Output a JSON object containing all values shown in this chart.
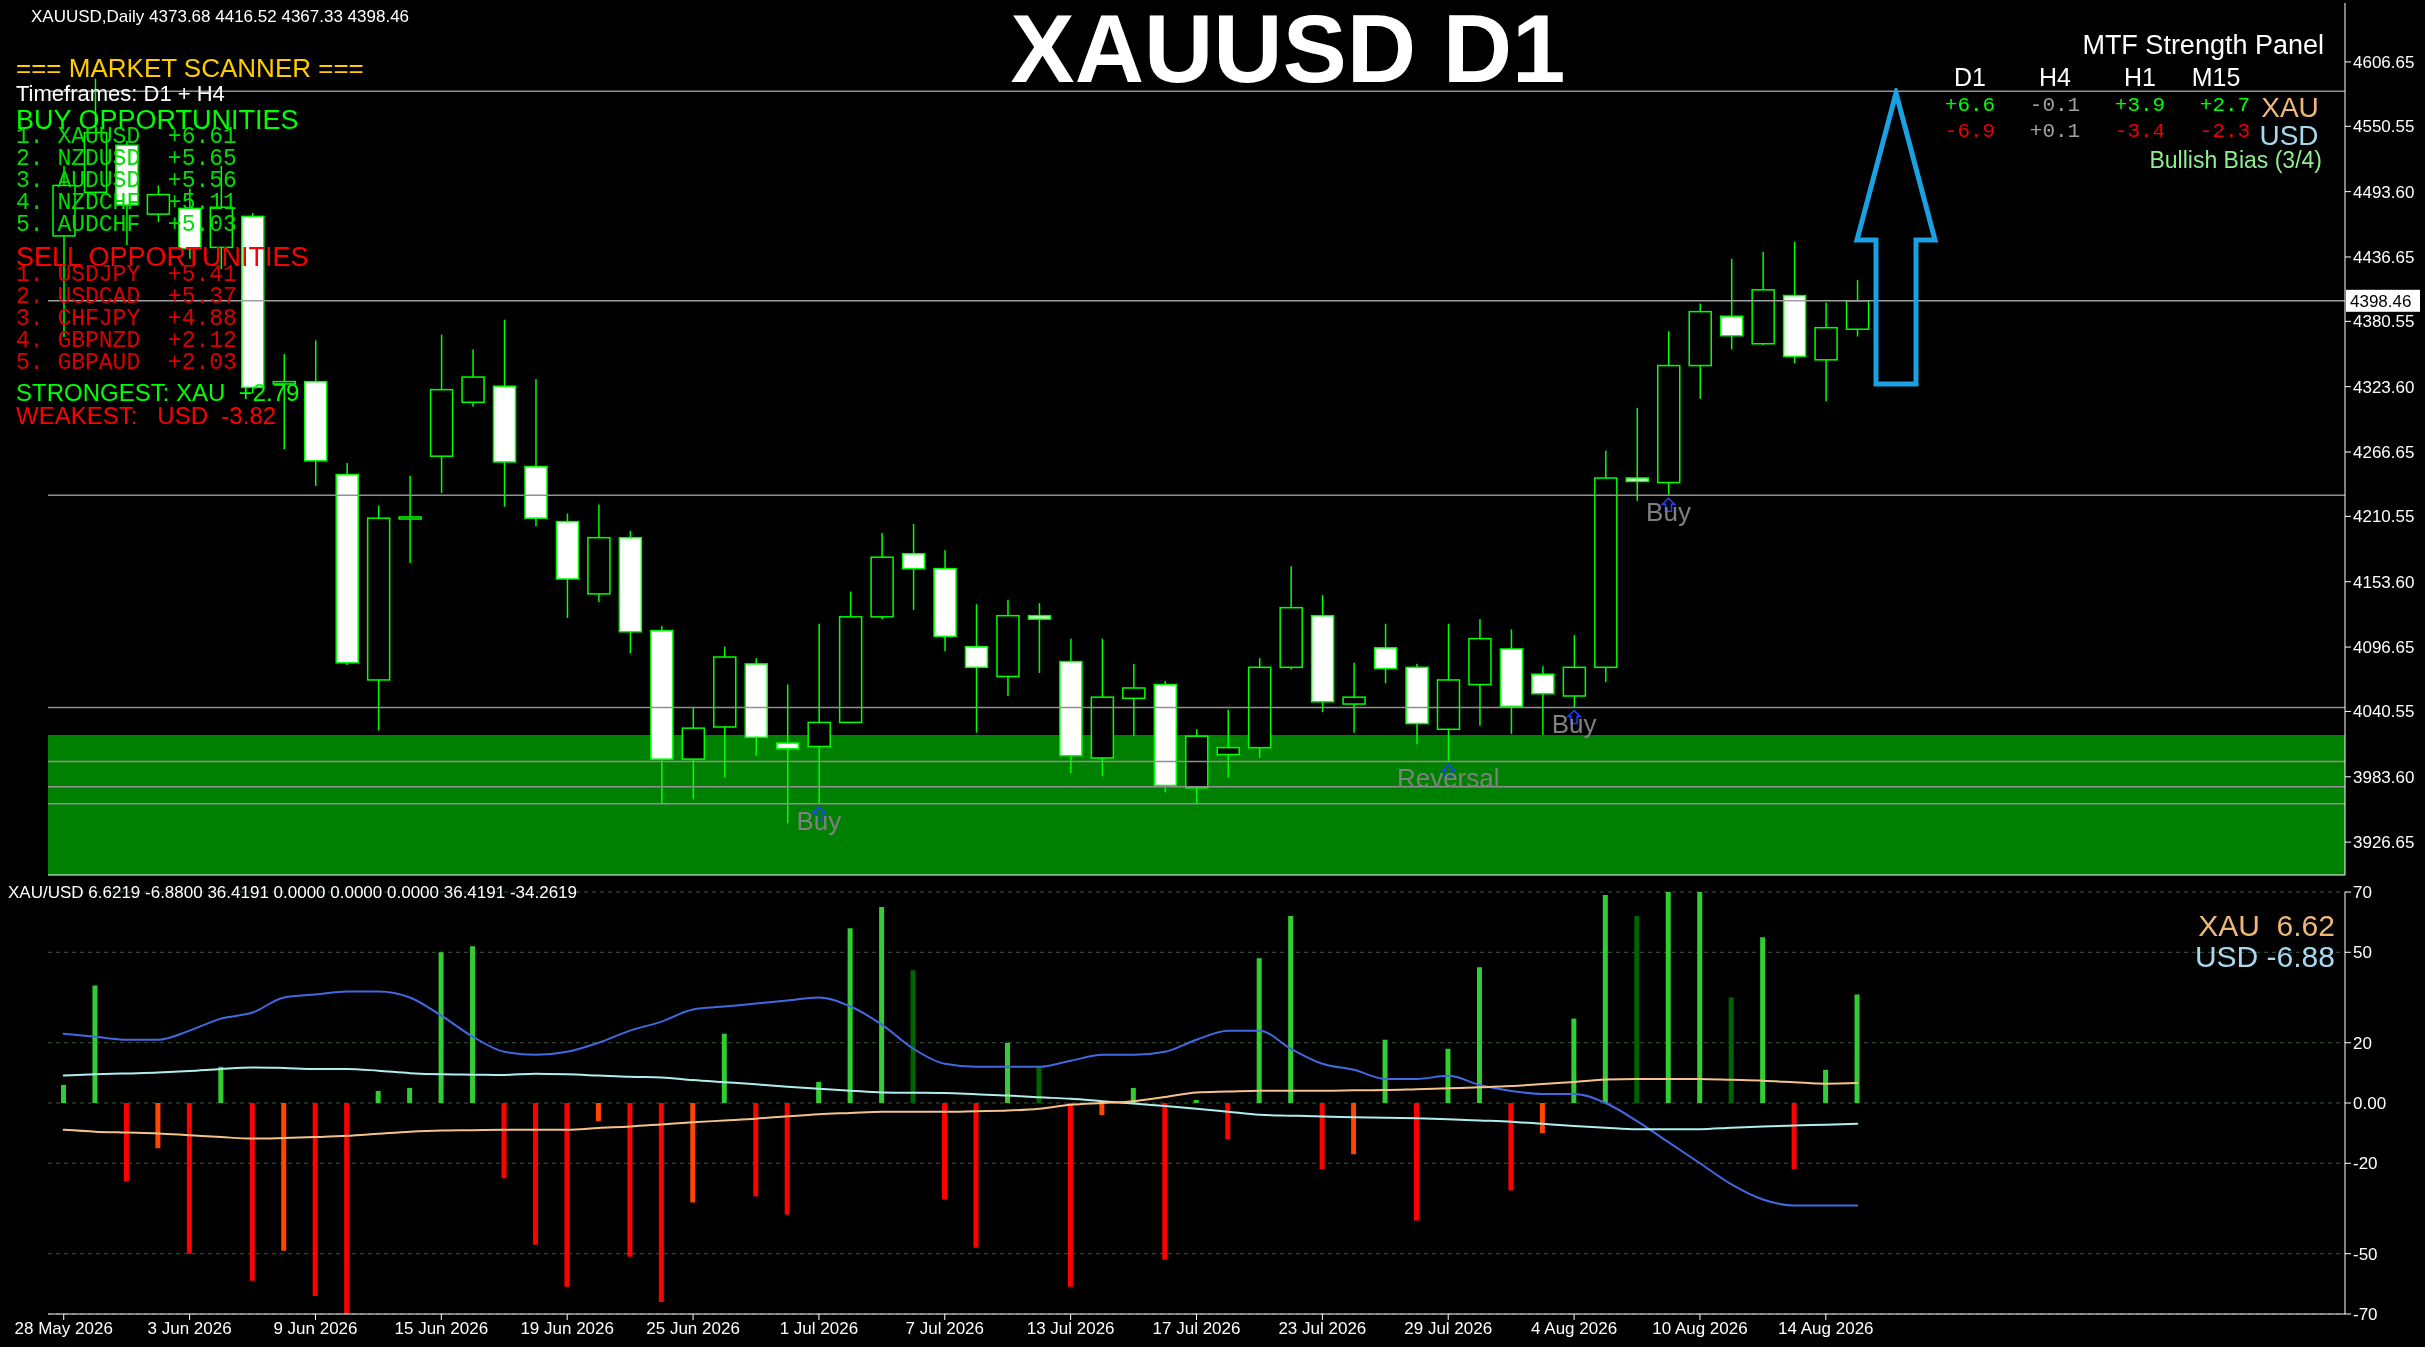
{
  "chart_data": [
    {
      "type": "candlestick",
      "title": "XAUUSD D1",
      "color": "#00ff00",
      "tick_labels": "y",
      "categories": [
        "28 May 2026",
        null,
        null,
        null,
        "3 Jun 2026",
        null,
        null,
        null,
        "9 Jun 2026",
        null,
        null,
        null,
        "15 Jun 2026",
        null,
        null,
        null,
        "19 Jun 2026",
        null,
        null,
        null,
        "25 Jun 2026",
        null,
        null,
        null,
        "1 Jul 2026",
        null,
        null,
        null,
        "7 Jul 2026",
        null,
        null,
        null,
        "13 Jul 2026",
        null,
        null,
        null,
        "17 Jul 2026",
        null,
        null,
        null,
        "23 Jul 2026",
        null,
        null,
        null,
        "29 Jul 2026",
        null,
        null,
        null,
        "4 Aug 2026",
        null,
        null,
        null,
        "10 Aug 2026",
        null,
        null,
        null,
        "14 Aug 2026",
        null,
        null,
        null,
        null,
        null,
        null,
        null,
        null,
        null,
        null,
        null,
        null,
        null,
        null,
        null,
        null
      ],
      "ohlc": [
        [
          4455,
          4516,
          4367,
          4499
        ],
        [
          4493,
          4592,
          4489,
          4545
        ],
        [
          4534,
          4538,
          4447,
          4482
        ],
        [
          4474,
          4499,
          4467,
          4491
        ],
        [
          4479,
          4496,
          4435,
          4444
        ],
        [
          4445,
          4516,
          4426,
          4480
        ],
        [
          4472,
          4475,
          4318,
          4323
        ],
        [
          4326,
          4352,
          4269,
          4328
        ],
        [
          4328,
          4364,
          4237,
          4259
        ],
        [
          4247,
          4257,
          4081,
          4083
        ],
        [
          4068,
          4220,
          4024,
          4209
        ],
        [
          4209,
          4246,
          4170,
          4210
        ],
        [
          4263,
          4369,
          4231,
          4321
        ],
        [
          4310,
          4356,
          4306,
          4332
        ],
        [
          4324,
          4382,
          4219,
          4258
        ],
        [
          4254,
          4330,
          4202,
          4209
        ],
        [
          4206,
          4213,
          4122,
          4156
        ],
        [
          4143,
          4221,
          4136,
          4192
        ],
        [
          4192,
          4198,
          4091,
          4110
        ],
        [
          4111,
          4115,
          3960,
          3999
        ],
        [
          3999,
          4044,
          3964,
          4026
        ],
        [
          4027,
          4097,
          3983,
          4088
        ],
        [
          4082,
          4087,
          4002,
          4018
        ],
        [
          4013,
          4064,
          3943,
          4008
        ],
        [
          4010,
          4117,
          3960,
          4031
        ],
        [
          4031,
          4145,
          4031,
          4123
        ],
        [
          4123,
          4196,
          4121,
          4175
        ],
        [
          4178,
          4204,
          4129,
          4165
        ],
        [
          4165,
          4181,
          4093,
          4106
        ],
        [
          4097,
          4134,
          4022,
          4079
        ],
        [
          4071,
          4138,
          4054,
          4124
        ],
        [
          4124,
          4135,
          4074,
          4121
        ],
        [
          4084,
          4104,
          3987,
          4002
        ],
        [
          4000,
          4104,
          3984,
          4053
        ],
        [
          4052,
          4082,
          4019,
          4061
        ],
        [
          4064,
          4067,
          3970,
          3976
        ],
        [
          3974,
          4025,
          3960,
          4019
        ],
        [
          4003,
          4042,
          3983,
          4009
        ],
        [
          4009,
          4087,
          4000,
          4079
        ],
        [
          4079,
          4167,
          4077,
          4131
        ],
        [
          4124,
          4142,
          4040,
          4049
        ],
        [
          4047,
          4083,
          4022,
          4053
        ],
        [
          4096,
          4117,
          4065,
          4078
        ],
        [
          4079,
          4082,
          4012,
          4030
        ],
        [
          4025,
          4117,
          3997,
          4068
        ],
        [
          4064,
          4121,
          4028,
          4104
        ],
        [
          4095,
          4112,
          4021,
          4045
        ],
        [
          4073,
          4080,
          4020,
          4056
        ],
        [
          4054,
          4107,
          4044,
          4079
        ],
        [
          4079,
          4268,
          4066,
          4244
        ],
        [
          4244,
          4305,
          4224,
          4241
        ],
        [
          4240,
          4372,
          4229,
          4342
        ],
        [
          4342,
          4396,
          4313,
          4389
        ],
        [
          4385,
          4435,
          4356,
          4368
        ],
        [
          4361,
          4441,
          4360,
          4408
        ],
        [
          4403,
          4450,
          4344,
          4350
        ],
        [
          4347,
          4397,
          4311,
          4375
        ],
        [
          4373.68,
          4416.52,
          4367.33,
          4398.46
        ],
        null,
        null,
        null,
        null,
        null,
        null,
        null,
        null,
        null,
        null,
        null,
        null,
        null,
        null,
        null
      ],
      "ylim": [
        3898,
        4658
      ],
      "yticks": [
        {
          "value": 4606.65,
          "label": "4606.65"
        },
        {
          "value": 4550.55,
          "label": "4550.55"
        },
        {
          "value": 4493.6,
          "label": "4493.60"
        },
        {
          "value": 4436.65,
          "label": "4436.65"
        },
        {
          "value": 4380.55,
          "label": "4380.55"
        },
        {
          "value": 4323.6,
          "label": "4323.60"
        },
        {
          "value": 4266.65,
          "label": "4266.65"
        },
        {
          "value": 4210.55,
          "label": "4210.55"
        },
        {
          "value": 4153.6,
          "label": "4153.60"
        },
        {
          "value": 4096.65,
          "label": "4096.65"
        },
        {
          "value": 4040.55,
          "label": "4040.55"
        },
        {
          "value": 3983.6,
          "label": "3983.60"
        },
        {
          "value": 3926.65,
          "label": "3926.65"
        }
      ],
      "bands": [
        {
          "axis": "y",
          "from": 3898,
          "to": 4020,
          "color": "#008000"
        }
      ],
      "ref_lines": [
        {
          "axis": "y",
          "value": 4398.46,
          "label": "4398.46",
          "color": "#a0a0a0"
        },
        {
          "axis": "y",
          "value": 4581,
          "color": "#909090"
        },
        {
          "axis": "y",
          "value": 4229,
          "color": "#909090"
        },
        {
          "axis": "y",
          "value": 4044,
          "color": "#909090"
        },
        {
          "axis": "y",
          "value": 3997,
          "color": "#909090"
        },
        {
          "axis": "y",
          "value": 3975,
          "color": "#909090"
        },
        {
          "axis": "y",
          "value": 3960,
          "color": "#909090"
        }
      ],
      "annotations": [
        "XAUUSD,Daily 4373.68 4416.52 4367.33 4398.46",
        "=== MARKET SCANNER ===",
        "Timeframes: D1 + H4",
        "BUY OPPORTUNITIES",
        "1. XAUUSD  +6.61",
        "2. NZDUSD  +5.65",
        "3. AUDUSD  +5.56",
        "4. NZDCHF  +5.11",
        "5. AUDCHF  +5.03",
        "SELL OPPORTUNITIES",
        "1. USDJPY  +5.41",
        "2. USDCAD  +5.37",
        "3. CHFJPY  +4.88",
        "4. GBPNZD  +2.12",
        "5. GBPAUD  +2.03",
        "STRONGEST: XAU  +2.79",
        "WEAKEST:   USD  -3.82",
        "MTF Strength Panel",
        "D1",
        "H4",
        "H1",
        "M15",
        "+6.6",
        "-0.1",
        "+3.9",
        "+2.7",
        "XAU",
        "-6.9",
        "+0.1",
        "-3.4",
        "-2.3",
        "USD",
        "Bullish Bias (3/4)",
        {
          "text": "Buy",
          "x": "1 Jul 2026",
          "y": 3960
        },
        {
          "text": "Reversal",
          "x": "29 Jul 2026",
          "y": 3997
        },
        {
          "text": "Buy",
          "x": "4 Aug 2026",
          "y": 4044
        },
        {
          "text": "Buy",
          "y": 4229
        }
      ]
    },
    {
      "type": "bar",
      "grid": "y",
      "categories": [
        "28 May 2026",
        null,
        null,
        null,
        "3 Jun 2026",
        null,
        null,
        null,
        "9 Jun 2026",
        null,
        null,
        null,
        "15 Jun 2026",
        null,
        null,
        null,
        "19 Jun 2026",
        null,
        null,
        null,
        "25 Jun 2026",
        null,
        null,
        null,
        "1 Jul 2026",
        null,
        null,
        null,
        "7 Jul 2026",
        null,
        null,
        null,
        "13 Jul 2026",
        null,
        null,
        null,
        "17 Jul 2026",
        null,
        null,
        null,
        "23 Jul 2026",
        null,
        null,
        null,
        "29 Jul 2026",
        null,
        null,
        null,
        "4 Aug 2026",
        null,
        null,
        null,
        "10 Aug 2026",
        null,
        null,
        null,
        "14 Aug 2026",
        null,
        null,
        null,
        null,
        null,
        null,
        null,
        null,
        null,
        null,
        null,
        null,
        null,
        null,
        null,
        null
      ],
      "ylim": [
        -70,
        70
      ],
      "yticks": [
        70,
        50,
        20,
        {
          "value": 0,
          "label": "0.00"
        },
        -20,
        -50,
        -70
      ],
      "series": [
        {
          "type": "bar",
          "values": [
            6,
            39,
            -26,
            -15,
            -50,
            12,
            -59,
            -49,
            -64,
            -70,
            4,
            5,
            50,
            52,
            -25,
            -47,
            -61,
            -6,
            -51,
            -66,
            -33,
            23,
            -31,
            -37,
            7,
            58,
            65,
            44,
            -32,
            -48,
            20,
            12,
            -61,
            -4,
            5,
            -52,
            1,
            -12,
            48,
            62,
            -22,
            -17,
            21,
            -39,
            18,
            45,
            -29,
            -10,
            28,
            69,
            62,
            70,
            70,
            35,
            55,
            -22,
            11,
            36,
            null,
            null,
            null,
            null,
            null,
            null,
            null,
            null,
            null,
            null,
            null,
            null,
            null,
            null,
            null
          ],
          "colors": [
            "#32cd32",
            "#32cd32",
            "#ff0000",
            "#ff4500",
            "#ff0000",
            "#32cd32",
            "#ff0000",
            "#ff4500",
            "#ff0000",
            "#ff0000",
            "#32cd32",
            "#32cd32",
            "#32cd32",
            "#32cd32",
            "#ff0000",
            "#ff0000",
            "#ff0000",
            "#ff4500",
            "#ff0000",
            "#ff0000",
            "#ff4500",
            "#32cd32",
            "#ff0000",
            "#ff0000",
            "#32cd32",
            "#32cd32",
            "#32cd32",
            "#006400",
            "#ff0000",
            "#ff0000",
            "#32cd32",
            "#006400",
            "#ff0000",
            "#ff4500",
            "#32cd32",
            "#ff0000",
            "#32cd32",
            "#ff0000",
            "#32cd32",
            "#32cd32",
            "#ff0000",
            "#ff4500",
            "#32cd32",
            "#ff0000",
            "#32cd32",
            "#32cd32",
            "#ff0000",
            "#ff4500",
            "#32cd32",
            "#32cd32",
            "#006400",
            "#32cd32",
            "#32cd32",
            "#006400",
            "#32cd32",
            "#ff0000",
            "#32cd32",
            "#32cd32",
            null,
            null,
            null,
            null,
            null,
            null,
            null,
            null,
            null,
            null,
            null,
            null,
            null,
            null,
            null
          ]
        },
        {
          "type": "line",
          "color": "#4169e1",
          "values": [
            23,
            22,
            21,
            21,
            24,
            28,
            30,
            35,
            36,
            37,
            37,
            35,
            29,
            22,
            17,
            16,
            17,
            20,
            24,
            27,
            31,
            32,
            33,
            34,
            35,
            32,
            26,
            18,
            13,
            12,
            12,
            12,
            14,
            16,
            16,
            17,
            21,
            24,
            24,
            18,
            13,
            11,
            8,
            8,
            9,
            6,
            4,
            3,
            3,
            0,
            -6,
            -13,
            -20,
            -27,
            -32,
            -34,
            -34,
            -34,
            null,
            null,
            null,
            null,
            null,
            null,
            null,
            null,
            null,
            null,
            null,
            null,
            null,
            null,
            null
          ]
        },
        {
          "type": "line",
          "color": "#afeeee",
          "values": [
            9.1,
            9.5,
            9.8,
            10.1,
            10.6,
            11.3,
            11.8,
            11.6,
            11.3,
            11.3,
            10.7,
            9.9,
            9.5,
            9.4,
            9.3,
            9.7,
            9.5,
            9.1,
            8.7,
            8.5,
            7.6,
            6.9,
            6.2,
            5.4,
            4.7,
            4.1,
            3.5,
            3.4,
            3.3,
            2.9,
            2.5,
            1.9,
            1.4,
            0.6,
            -0.2,
            -1,
            -1.9,
            -2.9,
            -3.9,
            -4.2,
            -4.5,
            -4.7,
            -4.9,
            -5.1,
            -5.4,
            -5.8,
            -6.2,
            -6.9,
            -7.6,
            -8.2,
            -8.7,
            -8.7,
            -8.7,
            -8.2,
            -7.8,
            -7.5,
            -7.2,
            -6.9,
            null,
            null,
            null,
            null,
            null,
            null,
            null,
            null,
            null,
            null,
            null,
            null,
            null,
            null,
            null
          ]
        },
        {
          "type": "line",
          "color": "#f4c28a",
          "values": [
            -8.9,
            -9.5,
            -9.8,
            -10.1,
            -10.7,
            -11.3,
            -11.8,
            -11.6,
            -11.3,
            -10.9,
            -10.2,
            -9.5,
            -9.1,
            -9,
            -8.9,
            -8.9,
            -8.9,
            -8.3,
            -7.8,
            -7.1,
            -6.4,
            -5.8,
            -5.2,
            -4.4,
            -3.7,
            -3.3,
            -2.9,
            -2.9,
            -2.9,
            -2.7,
            -2.5,
            -1.9,
            -0.6,
            0,
            0.6,
            2,
            3.5,
            3.8,
            4.1,
            4.1,
            4.1,
            4.2,
            4.3,
            4.6,
            4.9,
            5.2,
            5.6,
            6.3,
            7,
            7.8,
            8,
            8,
            8,
            7.7,
            7.4,
            6.9,
            6.4,
            6.6,
            null,
            null,
            null,
            null,
            null,
            null,
            null,
            null,
            null,
            null,
            null,
            null,
            null,
            null,
            null
          ]
        }
      ],
      "annotations": [
        "XAU/USD 6.6219 -6.8800 36.4191 0.0000 0.0000 0.0000 36.4191 -34.2619",
        "XAU  6.62",
        "USD -6.88"
      ]
    }
  ]
}
